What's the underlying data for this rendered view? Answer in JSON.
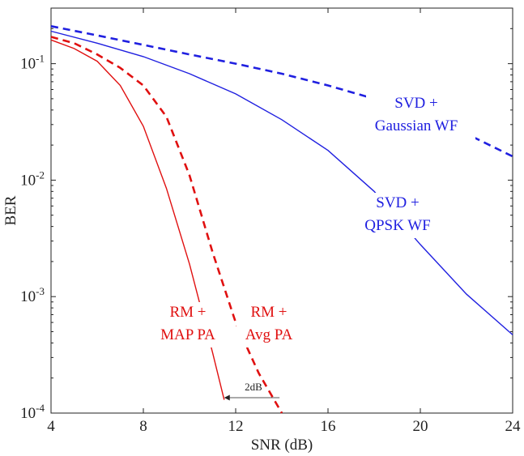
{
  "chart_data": {
    "type": "line",
    "xlabel": "SNR (dB)",
    "ylabel": "BER",
    "xlim": [
      4,
      24
    ],
    "ylim": [
      0.0001,
      0.3
    ],
    "yscale": "log",
    "grid": false,
    "x_ticks": [
      4,
      8,
      12,
      16,
      20,
      24
    ],
    "x_tick_labels": [
      "4",
      "8",
      "12",
      "16",
      "20",
      "24"
    ],
    "y_ticks": [
      0.0001,
      0.001,
      0.01,
      0.1
    ],
    "y_tick_labels": [
      {
        "base": "10",
        "exp": "-4"
      },
      {
        "base": "10",
        "exp": "-3"
      },
      {
        "base": "10",
        "exp": "-2"
      },
      {
        "base": "10",
        "exp": "-1"
      }
    ],
    "series": [
      {
        "color": "#2020e0",
        "dash": "dashed",
        "x": [
          4,
          6,
          8,
          10,
          12,
          14,
          16,
          18,
          20,
          22,
          24
        ],
        "y": [
          0.21,
          0.175,
          0.145,
          0.12,
          0.1,
          0.082,
          0.065,
          0.05,
          0.036,
          0.025,
          0.016
        ]
      },
      {
        "color": "#2020e0",
        "dash": "solid",
        "x": [
          4,
          6,
          8,
          10,
          12,
          14,
          16,
          18,
          20,
          22,
          24
        ],
        "y": [
          0.19,
          0.15,
          0.115,
          0.082,
          0.055,
          0.033,
          0.018,
          0.008,
          0.0028,
          0.00105,
          0.00047
        ]
      },
      {
        "color": "#e01010",
        "dash": "dashed",
        "x": [
          4,
          5,
          6,
          7,
          8,
          9,
          10,
          11,
          12,
          13,
          14
        ],
        "y": [
          0.17,
          0.15,
          0.12,
          0.092,
          0.065,
          0.035,
          0.011,
          0.0024,
          0.0006,
          0.00022,
          0.0001
        ]
      },
      {
        "color": "#e01010",
        "dash": "solid",
        "x": [
          4,
          5,
          6,
          7,
          8,
          9,
          10,
          11,
          11.5
        ],
        "y": [
          0.16,
          0.135,
          0.105,
          0.065,
          0.029,
          0.0085,
          0.0019,
          0.00033,
          0.00013
        ]
      }
    ],
    "annotations": [
      {
        "lines": [
          "SVD +",
          "Gaussian WF"
        ],
        "color": "#2020e0"
      },
      {
        "lines": [
          "SVD +",
          "QPSK WF"
        ],
        "color": "#2020e0"
      },
      {
        "lines": [
          "RM +",
          "MAP PA"
        ],
        "color": "#e01010"
      },
      {
        "lines": [
          "RM +",
          "Avg PA"
        ],
        "color": "#e01010"
      },
      {
        "lines": [
          "2dB"
        ],
        "color": "#222222"
      }
    ]
  }
}
